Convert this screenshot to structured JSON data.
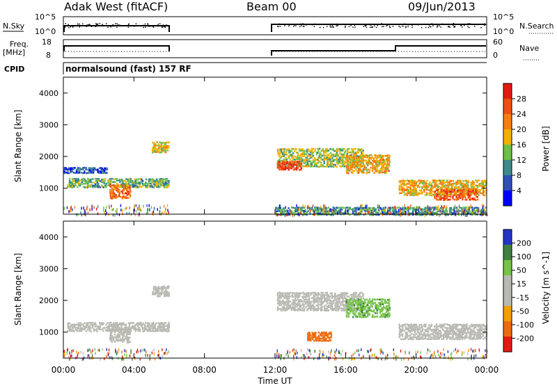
{
  "header": {
    "station": "Adak West (fitACF)",
    "beam": "Beam 00",
    "date": "09/Jun/2013"
  },
  "noise_panel": {
    "left_label": "N.Sky",
    "right_label": "N.Search",
    "left_ticks": [
      "10^5",
      "10^0"
    ],
    "right_ticks": [
      "10^5",
      "10^0"
    ]
  },
  "freq_panel": {
    "left_label_1": "Freq.",
    "left_label_2": "[MHz]",
    "right_label": "Nave",
    "left_ticks": [
      "18",
      "8"
    ],
    "right_ticks": [
      "60",
      "0"
    ]
  },
  "cpid_panel": {
    "label": "CPID",
    "program": "normalsound (fast) 157 RF"
  },
  "colors": {
    "power_scale": [
      "#0000ff",
      "#2e4fb6",
      "#3d8b88",
      "#6cc04a",
      "#f2b100",
      "#f77e10",
      "#f04f12",
      "#e41a12"
    ],
    "velocity_scale": [
      "#2434c7",
      "#3f7f3f",
      "#77c34a",
      "#c0c0b8",
      "#f2a000",
      "#ef6b10",
      "#e61a12"
    ],
    "ground_scatter": "#b9b9b2"
  },
  "chart_data": [
    {
      "type": "heatmap",
      "name": "Power",
      "ylabel": "Slant Range [km]",
      "xlabel": "Time UT",
      "ylim": [
        180,
        4500
      ],
      "y_ticks": [
        "1000",
        "2000",
        "3000",
        "4000"
      ],
      "colorbar_label": "Power [dB]",
      "colorbar_ticks": [
        "4",
        "8",
        "12",
        "16",
        "20",
        "24",
        "28"
      ],
      "colorbar_range": [
        0,
        30
      ],
      "data_gap_hours": [
        6.0,
        12.0
      ],
      "blobs": [
        {
          "t0": 0.2,
          "t1": 6.0,
          "r0": 1050,
          "r1": 1350,
          "level": 12
        },
        {
          "t0": 2.6,
          "t1": 3.8,
          "r0": 700,
          "r1": 1150,
          "level": 22
        },
        {
          "t0": 0.0,
          "t1": 2.5,
          "r0": 1500,
          "r1": 1700,
          "level": 6
        },
        {
          "t0": 5.0,
          "t1": 6.0,
          "r0": 2150,
          "r1": 2500,
          "level": 16
        },
        {
          "t0": 12.1,
          "t1": 17.0,
          "r0": 1700,
          "r1": 2300,
          "level": 14
        },
        {
          "t0": 12.1,
          "t1": 13.5,
          "r0": 1600,
          "r1": 1900,
          "level": 26
        },
        {
          "t0": 16.0,
          "t1": 18.5,
          "r0": 1500,
          "r1": 2100,
          "level": 18
        },
        {
          "t0": 19.0,
          "t1": 24.0,
          "r0": 800,
          "r1": 1300,
          "level": 18
        },
        {
          "t0": 21.0,
          "t1": 23.5,
          "r0": 650,
          "r1": 1000,
          "level": 24
        },
        {
          "t0": 12.0,
          "t1": 24.0,
          "r0": 180,
          "r1": 450,
          "level": 10
        }
      ]
    },
    {
      "type": "heatmap",
      "name": "Velocity",
      "ylabel": "Slant Range [km]",
      "xlabel": "Time UT",
      "ylim": [
        180,
        4500
      ],
      "y_ticks": [
        "1000",
        "2000",
        "3000",
        "4000"
      ],
      "colorbar_label": "Velocity [m s^-1]",
      "colorbar_ticks": [
        "200",
        "100",
        "50",
        "15",
        "-15",
        "-50",
        "-100",
        "-200"
      ],
      "colorbar_range": [
        -250,
        250
      ],
      "data_gap_hours": [
        6.0,
        12.0
      ],
      "blobs": [
        {
          "t0": 0.2,
          "t1": 6.0,
          "r0": 1050,
          "r1": 1350,
          "level": 0
        },
        {
          "t0": 2.6,
          "t1": 3.8,
          "r0": 700,
          "r1": 1150,
          "level": 0
        },
        {
          "t0": 5.0,
          "t1": 6.0,
          "r0": 2150,
          "r1": 2500,
          "level": 0
        },
        {
          "t0": 12.1,
          "t1": 17.0,
          "r0": 1700,
          "r1": 2300,
          "level": 0
        },
        {
          "t0": 16.0,
          "t1": 18.5,
          "r0": 1500,
          "r1": 2100,
          "level": 40
        },
        {
          "t0": 13.8,
          "t1": 15.2,
          "r0": 750,
          "r1": 1050,
          "level": -80
        },
        {
          "t0": 19.0,
          "t1": 24.0,
          "r0": 800,
          "r1": 1300,
          "level": 0
        }
      ]
    }
  ],
  "x_axis": {
    "label": "Time UT",
    "range_hours": [
      0,
      24
    ],
    "tick_labels": [
      "00:00",
      "04:00",
      "08:00",
      "12:00",
      "16:00",
      "20:00",
      "00:00"
    ]
  }
}
